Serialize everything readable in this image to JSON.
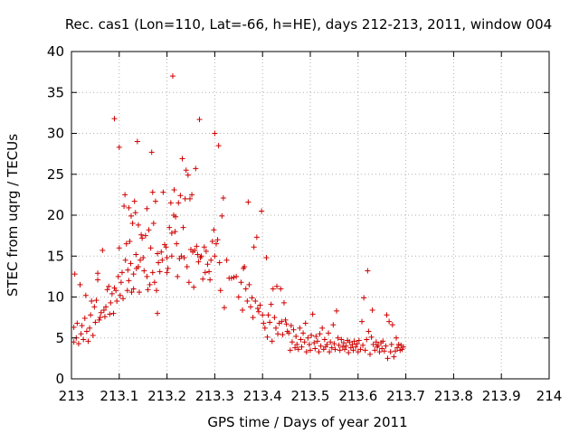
{
  "chart_data": {
    "type": "scatter",
    "title": "Rec. cas1 (Lon=110, Lat=-66, h=HE), days 212-213, 2011, window 004",
    "xlabel": "GPS time / Days of year 2011",
    "ylabel": "STEC from uqrg / TECUs",
    "xlim": [
      213,
      214
    ],
    "ylim": [
      0,
      40
    ],
    "x_ticks": [
      "213",
      "213.1",
      "213.2",
      "213.3",
      "213.4",
      "213.5",
      "213.6",
      "213.7",
      "213.8",
      "213.9",
      "214"
    ],
    "y_ticks": [
      "0",
      "5",
      "10",
      "15",
      "20",
      "25",
      "30",
      "35",
      "40"
    ],
    "grid": true,
    "marker": "+",
    "color": "#d00000",
    "points": [
      [
        213.005,
        4.5
      ],
      [
        213.005,
        6.3
      ],
      [
        213.007,
        12.8
      ],
      [
        213.01,
        5.0
      ],
      [
        213.012,
        6.8
      ],
      [
        213.015,
        4.3
      ],
      [
        213.018,
        11.5
      ],
      [
        213.02,
        5.5
      ],
      [
        213.022,
        6.5
      ],
      [
        213.025,
        4.8
      ],
      [
        213.028,
        7.4
      ],
      [
        213.03,
        10.2
      ],
      [
        213.032,
        5.8
      ],
      [
        213.035,
        4.6
      ],
      [
        213.038,
        6.2
      ],
      [
        213.04,
        7.8
      ],
      [
        213.042,
        9.5
      ],
      [
        213.045,
        5.3
      ],
      [
        213.048,
        8.8
      ],
      [
        213.05,
        6.9
      ],
      [
        213.052,
        9.6
      ],
      [
        213.055,
        12.9
      ],
      [
        213.055,
        12.1
      ],
      [
        213.058,
        7.2
      ],
      [
        213.06,
        7.5
      ],
      [
        213.062,
        8.1
      ],
      [
        213.065,
        15.7
      ],
      [
        213.068,
        8.4
      ],
      [
        213.07,
        7.6
      ],
      [
        213.072,
        8.8
      ],
      [
        213.075,
        10.9
      ],
      [
        213.078,
        11.3
      ],
      [
        213.08,
        7.9
      ],
      [
        213.082,
        9.3
      ],
      [
        213.085,
        10.4
      ],
      [
        213.088,
        8.0
      ],
      [
        213.09,
        31.8
      ],
      [
        213.09,
        11.1
      ],
      [
        213.093,
        10.8
      ],
      [
        213.095,
        9.5
      ],
      [
        213.098,
        12.5
      ],
      [
        213.1,
        28.3
      ],
      [
        213.1,
        16.0
      ],
      [
        213.102,
        10.2
      ],
      [
        213.104,
        11.8
      ],
      [
        213.106,
        13.0
      ],
      [
        213.108,
        9.8
      ],
      [
        213.11,
        21.1
      ],
      [
        213.112,
        22.5
      ],
      [
        213.113,
        14.5
      ],
      [
        213.115,
        16.5
      ],
      [
        213.117,
        10.8
      ],
      [
        213.118,
        13.3
      ],
      [
        213.12,
        20.9
      ],
      [
        213.12,
        12.0
      ],
      [
        213.122,
        16.8
      ],
      [
        213.124,
        14.1
      ],
      [
        213.125,
        19.9
      ],
      [
        213.126,
        10.6
      ],
      [
        213.128,
        19.0
      ],
      [
        213.13,
        12.8
      ],
      [
        213.13,
        11.0
      ],
      [
        213.132,
        21.7
      ],
      [
        213.134,
        20.3
      ],
      [
        213.135,
        15.2
      ],
      [
        213.136,
        13.5
      ],
      [
        213.138,
        29.0
      ],
      [
        213.14,
        18.8
      ],
      [
        213.14,
        13.7
      ],
      [
        213.142,
        10.6
      ],
      [
        213.144,
        14.5
      ],
      [
        213.146,
        17.6
      ],
      [
        213.148,
        17.2
      ],
      [
        213.15,
        14.8
      ],
      [
        213.152,
        13.2
      ],
      [
        213.155,
        17.5
      ],
      [
        213.158,
        20.8
      ],
      [
        213.158,
        12.5
      ],
      [
        213.16,
        10.9
      ],
      [
        213.162,
        18.2
      ],
      [
        213.164,
        11.5
      ],
      [
        213.166,
        16.0
      ],
      [
        213.168,
        27.7
      ],
      [
        213.17,
        22.8
      ],
      [
        213.17,
        13.0
      ],
      [
        213.172,
        19.0
      ],
      [
        213.174,
        11.8
      ],
      [
        213.176,
        21.7
      ],
      [
        213.178,
        10.8
      ],
      [
        213.18,
        15.3
      ],
      [
        213.18,
        8.0
      ],
      [
        213.182,
        14.2
      ],
      [
        213.185,
        13.1
      ],
      [
        213.188,
        15.5
      ],
      [
        213.19,
        14.5
      ],
      [
        213.192,
        22.8
      ],
      [
        213.195,
        16.4
      ],
      [
        213.198,
        16.1
      ],
      [
        213.2,
        14.8
      ],
      [
        213.2,
        13.0
      ],
      [
        213.202,
        13.5
      ],
      [
        213.205,
        18.5
      ],
      [
        213.208,
        21.5
      ],
      [
        213.21,
        17.8
      ],
      [
        213.21,
        15.0
      ],
      [
        213.212,
        37.0
      ],
      [
        213.214,
        20.0
      ],
      [
        213.215,
        23.1
      ],
      [
        213.217,
        18.0
      ],
      [
        213.218,
        19.8
      ],
      [
        213.22,
        16.5
      ],
      [
        213.222,
        12.5
      ],
      [
        213.224,
        21.5
      ],
      [
        213.226,
        14.7
      ],
      [
        213.228,
        22.4
      ],
      [
        213.23,
        15.0
      ],
      [
        213.232,
        26.9
      ],
      [
        213.234,
        18.5
      ],
      [
        213.236,
        14.8
      ],
      [
        213.238,
        22.0
      ],
      [
        213.24,
        25.5
      ],
      [
        213.242,
        13.7
      ],
      [
        213.244,
        24.9
      ],
      [
        213.246,
        11.8
      ],
      [
        213.248,
        22.0
      ],
      [
        213.25,
        15.8
      ],
      [
        213.252,
        22.5
      ],
      [
        213.254,
        15.5
      ],
      [
        213.256,
        11.2
      ],
      [
        213.258,
        15.7
      ],
      [
        213.26,
        25.7
      ],
      [
        213.262,
        16.2
      ],
      [
        213.264,
        15.2
      ],
      [
        213.266,
        14.3
      ],
      [
        213.268,
        31.7
      ],
      [
        213.27,
        14.8
      ],
      [
        213.272,
        15.0
      ],
      [
        213.275,
        12.2
      ],
      [
        213.278,
        16.1
      ],
      [
        213.28,
        13.0
      ],
      [
        213.282,
        15.6
      ],
      [
        213.285,
        14.0
      ],
      [
        213.288,
        13.1
      ],
      [
        213.29,
        12.1
      ],
      [
        213.292,
        14.5
      ],
      [
        213.295,
        16.8
      ],
      [
        213.298,
        18.2
      ],
      [
        213.3,
        30.0
      ],
      [
        213.3,
        15.0
      ],
      [
        213.303,
        16.5
      ],
      [
        213.306,
        17.0
      ],
      [
        213.308,
        28.5
      ],
      [
        213.31,
        14.2
      ],
      [
        213.312,
        10.8
      ],
      [
        213.315,
        19.9
      ],
      [
        213.318,
        22.1
      ],
      [
        213.32,
        8.7
      ],
      [
        213.325,
        14.5
      ],
      [
        213.33,
        12.3
      ],
      [
        213.335,
        12.3
      ],
      [
        213.34,
        12.4
      ],
      [
        213.345,
        12.5
      ],
      [
        213.35,
        10.0
      ],
      [
        213.355,
        11.8
      ],
      [
        213.358,
        8.4
      ],
      [
        213.36,
        13.5
      ],
      [
        213.362,
        13.7
      ],
      [
        213.365,
        11.0
      ],
      [
        213.368,
        9.5
      ],
      [
        213.37,
        21.6
      ],
      [
        213.372,
        11.5
      ],
      [
        213.375,
        8.8
      ],
      [
        213.378,
        9.9
      ],
      [
        213.38,
        7.5
      ],
      [
        213.382,
        16.1
      ],
      [
        213.385,
        9.5
      ],
      [
        213.388,
        17.3
      ],
      [
        213.39,
        8.6
      ],
      [
        213.392,
        8.2
      ],
      [
        213.395,
        9.0
      ],
      [
        213.398,
        20.5
      ],
      [
        213.4,
        7.8
      ],
      [
        213.402,
        6.8
      ],
      [
        213.405,
        6.2
      ],
      [
        213.408,
        14.8
      ],
      [
        213.41,
        5.1
      ],
      [
        213.412,
        7.8
      ],
      [
        213.415,
        6.9
      ],
      [
        213.418,
        9.1
      ],
      [
        213.42,
        4.6
      ],
      [
        213.422,
        11.0
      ],
      [
        213.425,
        7.5
      ],
      [
        213.428,
        6.2
      ],
      [
        213.43,
        11.3
      ],
      [
        213.432,
        5.5
      ],
      [
        213.435,
        6.8
      ],
      [
        213.438,
        11.0
      ],
      [
        213.44,
        7.0
      ],
      [
        213.442,
        5.4
      ],
      [
        213.445,
        9.3
      ],
      [
        213.448,
        7.2
      ],
      [
        213.45,
        6.7
      ],
      [
        213.452,
        5.8
      ],
      [
        213.455,
        5.6
      ],
      [
        213.458,
        3.5
      ],
      [
        213.46,
        6.5
      ],
      [
        213.462,
        4.5
      ],
      [
        213.465,
        6.0
      ],
      [
        213.468,
        3.8
      ],
      [
        213.47,
        5.2
      ],
      [
        213.472,
        4.2
      ],
      [
        213.475,
        3.6
      ],
      [
        213.478,
        6.2
      ],
      [
        213.48,
        4.8
      ],
      [
        213.482,
        3.9
      ],
      [
        213.485,
        5.6
      ],
      [
        213.488,
        4.5
      ],
      [
        213.49,
        6.8
      ],
      [
        213.492,
        3.3
      ],
      [
        213.495,
        5.0
      ],
      [
        213.498,
        4.2
      ],
      [
        213.5,
        3.5
      ],
      [
        213.502,
        5.3
      ],
      [
        213.505,
        7.9
      ],
      [
        213.508,
        4.4
      ],
      [
        213.51,
        3.7
      ],
      [
        213.512,
        5.2
      ],
      [
        213.515,
        4.6
      ],
      [
        213.518,
        3.3
      ],
      [
        213.52,
        5.5
      ],
      [
        213.522,
        4.0
      ],
      [
        213.525,
        6.2
      ],
      [
        213.528,
        3.6
      ],
      [
        213.53,
        4.8
      ],
      [
        213.532,
        3.9
      ],
      [
        213.535,
        4.2
      ],
      [
        213.538,
        5.6
      ],
      [
        213.54,
        3.3
      ],
      [
        213.542,
        4.5
      ],
      [
        213.545,
        3.8
      ],
      [
        213.548,
        6.6
      ],
      [
        213.55,
        4.3
      ],
      [
        213.552,
        3.6
      ],
      [
        213.555,
        8.3
      ],
      [
        213.558,
        5.0
      ],
      [
        213.56,
        4.1
      ],
      [
        213.562,
        3.5
      ],
      [
        213.565,
        4.8
      ],
      [
        213.568,
        3.9
      ],
      [
        213.57,
        4.4
      ],
      [
        213.572,
        3.6
      ],
      [
        213.575,
        4.0
      ],
      [
        213.578,
        4.7
      ],
      [
        213.58,
        3.2
      ],
      [
        213.582,
        4.5
      ],
      [
        213.585,
        3.8
      ],
      [
        213.588,
        4.2
      ],
      [
        213.59,
        3.5
      ],
      [
        213.592,
        4.6
      ],
      [
        213.595,
        3.9
      ],
      [
        213.598,
        4.3
      ],
      [
        213.6,
        3.3
      ],
      [
        213.602,
        4.7
      ],
      [
        213.605,
        3.6
      ],
      [
        213.608,
        7.0
      ],
      [
        213.61,
        4.1
      ],
      [
        213.612,
        9.9
      ],
      [
        213.615,
        3.5
      ],
      [
        213.618,
        4.8
      ],
      [
        213.62,
        13.2
      ],
      [
        213.622,
        5.8
      ],
      [
        213.625,
        3.0
      ],
      [
        213.628,
        5.1
      ],
      [
        213.63,
        8.4
      ],
      [
        213.632,
        4.2
      ],
      [
        213.635,
        3.5
      ],
      [
        213.638,
        4.5
      ],
      [
        213.64,
        3.9
      ],
      [
        213.642,
        4.1
      ],
      [
        213.645,
        3.3
      ],
      [
        213.648,
        4.4
      ],
      [
        213.65,
        3.7
      ],
      [
        213.652,
        4.6
      ],
      [
        213.655,
        3.4
      ],
      [
        213.658,
        4.0
      ],
      [
        213.66,
        7.8
      ],
      [
        213.662,
        2.5
      ],
      [
        213.665,
        7.0
      ],
      [
        213.668,
        3.3
      ],
      [
        213.67,
        4.2
      ],
      [
        213.672,
        6.6
      ],
      [
        213.675,
        2.7
      ],
      [
        213.678,
        3.4
      ],
      [
        213.68,
        5.0
      ],
      [
        213.682,
        3.8
      ],
      [
        213.685,
        4.2
      ],
      [
        213.688,
        3.5
      ],
      [
        213.69,
        4.1
      ],
      [
        213.692,
        3.6
      ],
      [
        213.695,
        3.9
      ]
    ]
  }
}
